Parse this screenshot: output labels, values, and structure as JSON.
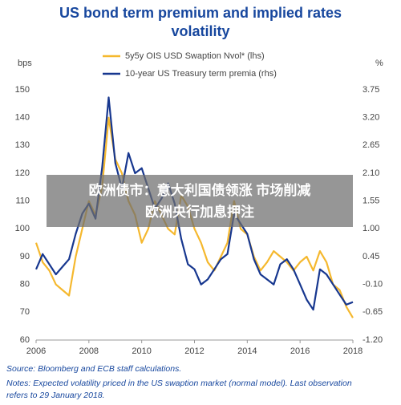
{
  "chart_data": {
    "type": "line",
    "title": [
      "US bond term premium and implied rates",
      "volatility"
    ],
    "ylabel": "bps",
    "y2label": "%",
    "x": [
      2006,
      2006.25,
      2006.5,
      2006.75,
      2007,
      2007.25,
      2007.5,
      2007.75,
      2008,
      2008.25,
      2008.5,
      2008.75,
      2009,
      2009.25,
      2009.5,
      2009.75,
      2010,
      2010.25,
      2010.5,
      2010.75,
      2011,
      2011.25,
      2011.5,
      2011.75,
      2012,
      2012.25,
      2012.5,
      2012.75,
      2013,
      2013.25,
      2013.5,
      2013.75,
      2014,
      2014.25,
      2014.5,
      2014.75,
      2015,
      2015.25,
      2015.5,
      2015.75,
      2016,
      2016.25,
      2016.5,
      2016.75,
      2017,
      2017.25,
      2017.5,
      2017.75,
      2018
    ],
    "series": [
      {
        "name": "5y5y OIS USD Swaption Nvol* (lhs)",
        "color": "#f5b82e",
        "values": [
          95,
          88,
          85,
          80,
          78,
          76,
          90,
          100,
          110,
          105,
          115,
          140,
          125,
          120,
          110,
          105,
          95,
          100,
          110,
          105,
          100,
          98,
          112,
          108,
          100,
          95,
          88,
          85,
          90,
          95,
          110,
          100,
          98,
          90,
          85,
          88,
          92,
          90,
          88,
          85,
          88,
          90,
          85,
          92,
          88,
          80,
          78,
          72,
          68
        ]
      },
      {
        "name": "10-year US Treasury term premia  (rhs)",
        "color": "#17378f",
        "axis": "y2",
        "values": [
          0.2,
          0.5,
          0.3,
          0.1,
          0.25,
          0.4,
          0.9,
          1.3,
          1.5,
          1.2,
          2.2,
          3.6,
          2.3,
          1.8,
          2.5,
          2.1,
          2.2,
          1.8,
          1.4,
          1.6,
          1.9,
          1.5,
          0.8,
          0.3,
          0.2,
          -0.1,
          0.0,
          0.2,
          0.4,
          0.5,
          1.3,
          1.1,
          0.9,
          0.4,
          0.1,
          0.0,
          -0.1,
          0.3,
          0.4,
          0.2,
          -0.1,
          -0.4,
          -0.6,
          0.2,
          0.1,
          -0.1,
          -0.3,
          -0.5,
          -0.45
        ]
      }
    ],
    "xlim": [
      2006,
      2018
    ],
    "xticks": [
      2006,
      2008,
      2010,
      2012,
      2014,
      2016,
      2018
    ],
    "ylim": [
      60,
      150
    ],
    "yticks": [
      60,
      70,
      80,
      90,
      100,
      110,
      120,
      130,
      140,
      150
    ],
    "y2lim": [
      -1.2,
      3.75
    ],
    "y2ticks": [
      {
        "value": -1.2,
        "label": "-1.20"
      },
      -0.65,
      {
        "value": -0.1,
        "label": "-0.10"
      },
      0.45,
      {
        "value": 1,
        "label": "1.00"
      },
      1.55,
      {
        "value": 2.1,
        "label": "2.10"
      },
      2.65,
      {
        "value": 3.2,
        "label": "3.20"
      },
      3.75
    ],
    "grid": false,
    "source": "Source: Bloomberg and ECB staff calculations.",
    "notes": [
      "Notes: Expected volatility priced in the US swaption market (normal model). Last observation",
      "refers to 29 January 2018."
    ],
    "overlay": [
      "欧洲债市：意大利国债领涨 市场削减",
      "欧洲央行加息押注"
    ]
  }
}
